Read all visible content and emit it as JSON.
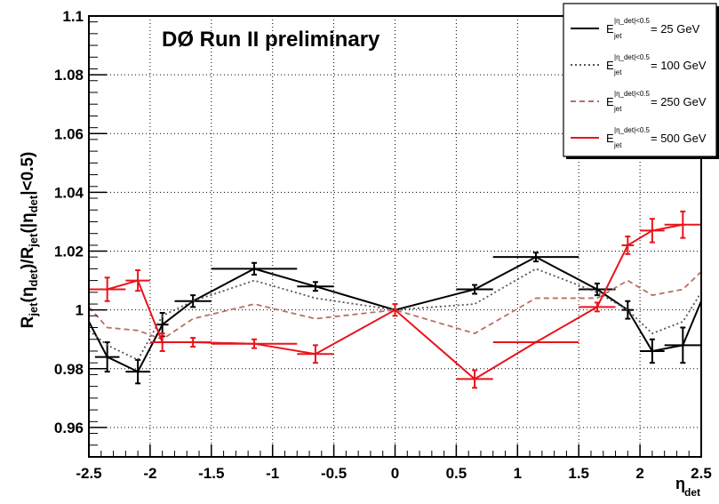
{
  "chart_data": {
    "type": "line",
    "title": "DØ Run II preliminary",
    "xlabel": {
      "base": "η",
      "sub": "det"
    },
    "ylabel": "R_jet(η_det)/R_jet(|η_det|<0.5)",
    "xlim": [
      -2.5,
      2.5
    ],
    "ylim": [
      0.95,
      1.1
    ],
    "x_ticks": [
      "-2.5",
      "-2",
      "-1.5",
      "-1",
      "-0.5",
      "0",
      "0.5",
      "1",
      "1.5",
      "2",
      "2.5"
    ],
    "y_ticks": [
      "0.96",
      "0.98",
      "1",
      "1.02",
      "1.04",
      "1.06",
      "1.08",
      "1.1"
    ],
    "grid": true,
    "legend_position": "top-right",
    "series": [
      {
        "name": "E_jet^{|η_det|<0.5} = 25 GeV",
        "legend_value": "=  25 GeV",
        "color": "#000000",
        "style": "solid",
        "errorbars": true,
        "x": [
          -2.5,
          -2.35,
          -2.1,
          -1.9,
          -1.65,
          -1.15,
          -0.65,
          0.0,
          0.65,
          1.15,
          1.65,
          1.9,
          2.1,
          2.35,
          2.5
        ],
        "y": [
          0.996,
          0.984,
          0.979,
          0.995,
          1.003,
          1.014,
          1.008,
          1.0,
          1.007,
          1.018,
          1.007,
          1.0,
          0.986,
          0.988,
          1.003
        ],
        "xerr": [
          0.0,
          0.1,
          0.1,
          0.05,
          0.15,
          0.35,
          0.15,
          0.0,
          0.15,
          0.35,
          0.15,
          0.05,
          0.1,
          0.15,
          0.0
        ],
        "yerr": [
          0.0,
          0.005,
          0.004,
          0.004,
          0.002,
          0.002,
          0.0015,
          0.0,
          0.0015,
          0.0015,
          0.002,
          0.003,
          0.004,
          0.006,
          0.0
        ]
      },
      {
        "name": "E_jet^{|η_det|<0.5} = 100 GeV",
        "legend_value": "= 100 GeV",
        "color": "#555555",
        "style": "dotted",
        "errorbars": false,
        "x": [
          -2.5,
          -2.35,
          -2.1,
          -1.9,
          -1.65,
          -1.15,
          -0.65,
          0.0,
          0.65,
          1.15,
          1.65,
          1.9,
          2.1,
          2.35,
          2.5
        ],
        "y": [
          0.993,
          0.988,
          0.983,
          0.998,
          1.003,
          1.01,
          1.004,
          1.0,
          1.002,
          1.014,
          1.006,
          1.0,
          0.992,
          0.996,
          1.006
        ]
      },
      {
        "name": "E_jet^{|η_det|<0.5} = 250 GeV",
        "legend_value": "= 250 GeV",
        "color": "#b86f5f",
        "style": "dashed",
        "errorbars": false,
        "x": [
          -2.5,
          -2.35,
          -2.1,
          -1.9,
          -1.65,
          -1.15,
          -0.65,
          0.0,
          0.65,
          1.15,
          1.65,
          1.9,
          2.1,
          2.35,
          2.5
        ],
        "y": [
          1.001,
          0.994,
          0.993,
          0.99,
          0.997,
          1.002,
          0.997,
          1.0,
          0.992,
          1.004,
          1.004,
          1.01,
          1.005,
          1.007,
          1.013
        ]
      },
      {
        "name": "E_jet^{|η_det|<0.5} = 500 GeV",
        "legend_value": "= 500 GeV",
        "color": "#e8141c",
        "style": "solid",
        "errorbars": true,
        "x": [
          -2.5,
          -2.35,
          -2.1,
          -1.9,
          -1.65,
          -1.15,
          -0.65,
          0.0,
          0.65,
          1.15,
          1.65,
          1.9,
          2.1,
          2.35
        ],
        "y": [
          1.007,
          1.007,
          1.01,
          0.989,
          0.989,
          0.9885,
          0.985,
          1.0,
          0.9765,
          0.989,
          1.001,
          1.022,
          1.027,
          1.029
        ],
        "xerr": [
          0.0,
          0.15,
          0.1,
          0.1,
          0.15,
          0.35,
          0.15,
          0.0,
          0.15,
          0.35,
          0.15,
          0.05,
          0.1,
          0.15
        ],
        "yerr": [
          0.0,
          0.004,
          0.0035,
          0.003,
          0.0015,
          0.0015,
          0.003,
          0.002,
          0.003,
          0.0,
          0.0015,
          0.003,
          0.004,
          0.0045
        ]
      }
    ]
  },
  "legend": {
    "label_base": "E",
    "label_sub": "jet",
    "label_sup": "|η_det|<0.5"
  }
}
